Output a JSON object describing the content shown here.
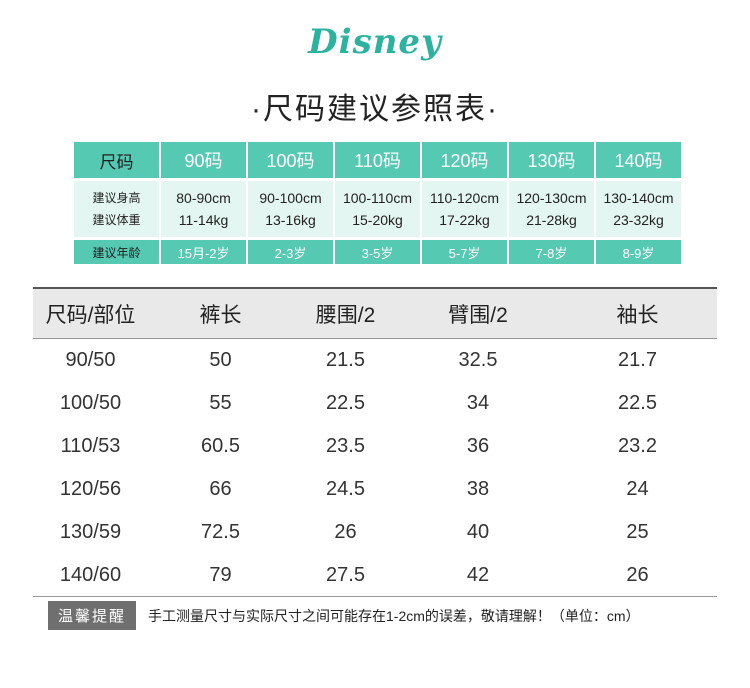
{
  "logo": "Disney",
  "title": "·尺码建议参照表·",
  "size_chart": {
    "header_label": "尺码",
    "sizes": [
      "90码",
      "100码",
      "110码",
      "120码",
      "130码",
      "140码"
    ],
    "height_label": "建议身高",
    "weight_label": "建议体重",
    "age_label": "建议年龄",
    "heights": [
      "80-90cm",
      "90-100cm",
      "100-110cm",
      "110-120cm",
      "120-130cm",
      "130-140cm"
    ],
    "weights": [
      "11-14kg",
      "13-16kg",
      "15-20kg",
      "17-22kg",
      "21-28kg",
      "23-32kg"
    ],
    "ages": [
      "15月-2岁",
      "2-3岁",
      "3-5岁",
      "5-7岁",
      "7-8岁",
      "8-9岁"
    ]
  },
  "measure_table": {
    "columns": [
      "尺码/部位",
      "裤长",
      "腰围/2",
      "臂围/2",
      "袖长"
    ],
    "rows": [
      [
        "90/50",
        "50",
        "21.5",
        "32.5",
        "21.7"
      ],
      [
        "100/50",
        "55",
        "22.5",
        "34",
        "22.5"
      ],
      [
        "110/53",
        "60.5",
        "23.5",
        "36",
        "23.2"
      ],
      [
        "120/56",
        "66",
        "24.5",
        "38",
        "24"
      ],
      [
        "130/59",
        "72.5",
        "26",
        "40",
        "25"
      ],
      [
        "140/60",
        "79",
        "27.5",
        "42",
        "26"
      ]
    ]
  },
  "note": {
    "badge": "温馨提醒",
    "text": "手工测量尺寸与实际尺寸之间可能存在1-2cm的误差，敬请理解！（单位：cm）"
  },
  "colors": {
    "accent": "#56c9b3",
    "light": "#e4f6f1",
    "logo": "#2bb3a0"
  }
}
